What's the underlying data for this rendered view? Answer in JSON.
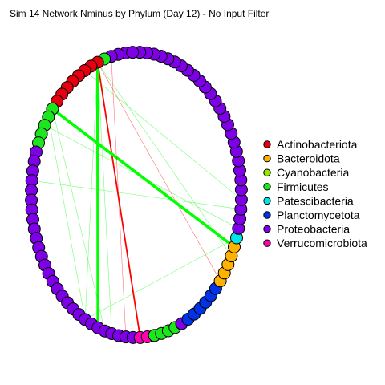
{
  "chart_data": {
    "type": "network",
    "title": "Sim 14 Network Nminus by Phylum (Day 12) - No Input Filter",
    "layout": "circle",
    "legend": {
      "placement": "right",
      "entries": [
        {
          "label": "Actinobacteriota",
          "color": "#e6000f"
        },
        {
          "label": "Bacteroidota",
          "color": "#ffb300"
        },
        {
          "label": "Cyanobacteria",
          "color": "#99e600"
        },
        {
          "label": "Firmicutes",
          "color": "#1ee61e"
        },
        {
          "label": "Patescibacteria",
          "color": "#00e6e6"
        },
        {
          "label": "Planctomycetota",
          "color": "#0033e6"
        },
        {
          "label": "Proteobacteria",
          "color": "#7d00e6"
        },
        {
          "label": "Verrucomicrobiota",
          "color": "#ff00b3"
        }
      ]
    },
    "node_groups": [
      {
        "phylum": "Proteobacteria",
        "count": 3
      },
      {
        "phylum": "Firmicutes",
        "count": 1
      },
      {
        "phylum": "Actinobacteriota",
        "count": 8
      },
      {
        "phylum": "Firmicutes",
        "count": 5
      },
      {
        "phylum": "Proteobacteria",
        "count": 28
      },
      {
        "phylum": "Verrucomicrobiota",
        "count": 2
      },
      {
        "phylum": "Firmicutes",
        "count": 4
      },
      {
        "phylum": "Proteobacteria",
        "count": 1
      },
      {
        "phylum": "Planctomycetota",
        "count": 6
      },
      {
        "phylum": "Bacteroidota",
        "count": 5
      },
      {
        "phylum": "Patescibacteria",
        "count": 1
      },
      {
        "phylum": "Proteobacteria",
        "count": 28
      }
    ],
    "edges": [
      {
        "from": 9,
        "to": 97,
        "color": "#ff0000",
        "weight": 3
      },
      {
        "from": 9,
        "to": 14,
        "color": "#ff0000",
        "weight": 5
      },
      {
        "from": 96,
        "to": 45,
        "color": "#ff0000",
        "weight": 2
      },
      {
        "from": 96,
        "to": 58,
        "color": "#ff0000",
        "weight": 1
      },
      {
        "from": 96,
        "to": 39,
        "color": "#00ff00",
        "weight": 4
      },
      {
        "from": 12,
        "to": 62,
        "color": "#00ff00",
        "weight": 4
      },
      {
        "from": 2,
        "to": 43,
        "color": "#ff0000",
        "weight": 1
      },
      {
        "from": 96,
        "to": 61,
        "color": "#00ff00",
        "weight": 1
      },
      {
        "from": 96,
        "to": 41,
        "color": "#00ff00",
        "weight": 1
      },
      {
        "from": 96,
        "to": 37,
        "color": "#00ff00",
        "weight": 1
      },
      {
        "from": 98,
        "to": 67,
        "color": "#00ff00",
        "weight": 1
      },
      {
        "from": 14,
        "to": 64,
        "color": "#00ff00",
        "weight": 1
      },
      {
        "from": 13,
        "to": 37,
        "color": "#00ff00",
        "weight": 1
      },
      {
        "from": 12,
        "to": 40,
        "color": "#00ff00",
        "weight": 1
      },
      {
        "from": 37,
        "to": 63,
        "color": "#00ff00",
        "weight": 1
      },
      {
        "from": 20,
        "to": 66,
        "color": "#00ff00",
        "weight": 1
      }
    ]
  }
}
